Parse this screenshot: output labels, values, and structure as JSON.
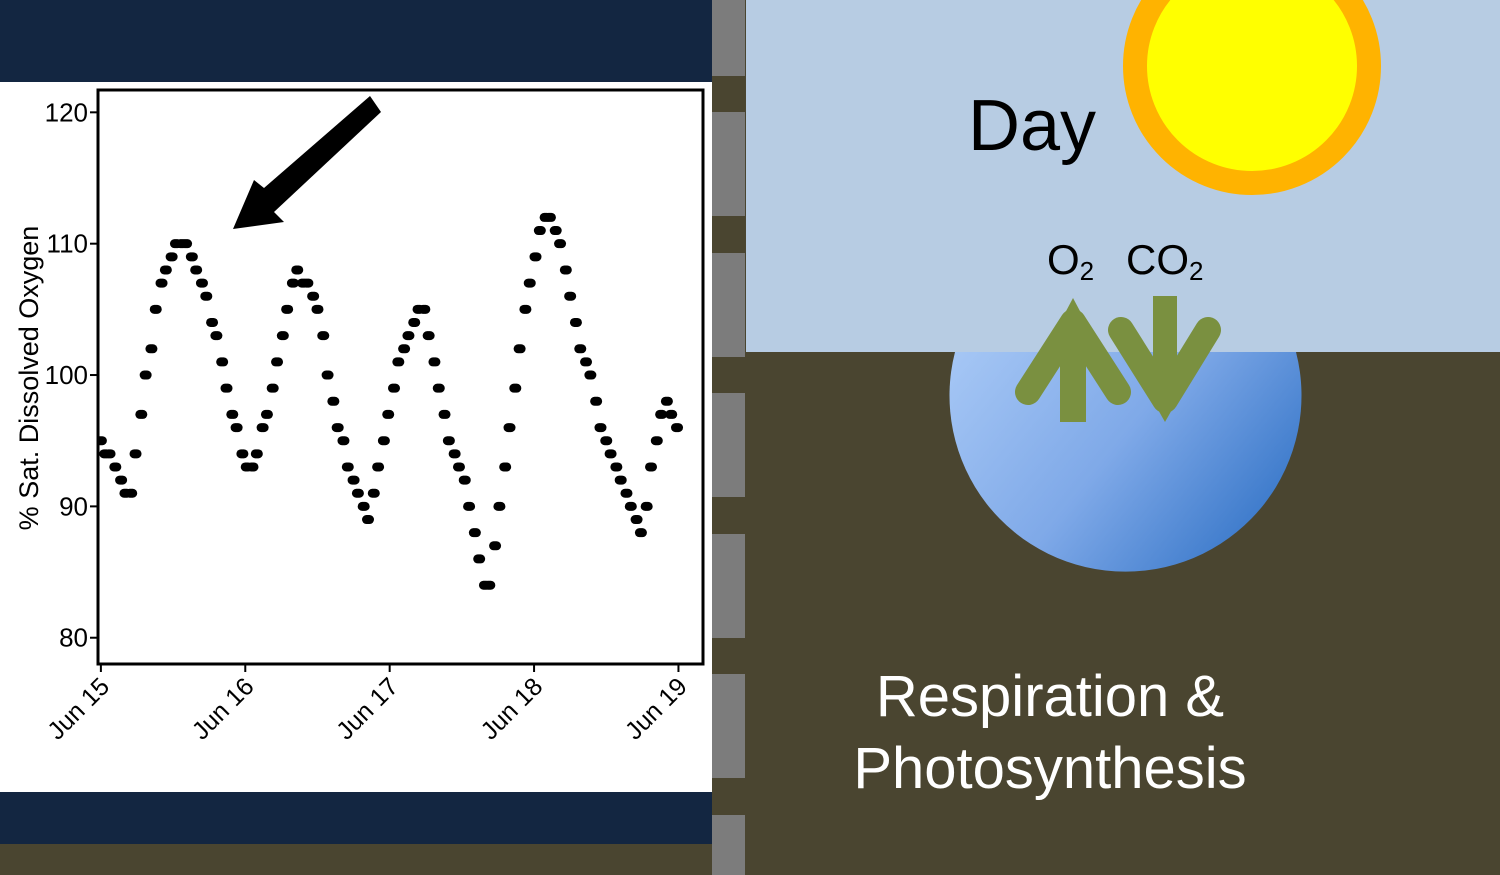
{
  "chart_data": {
    "type": "scatter",
    "title": "",
    "xlabel": "",
    "ylabel": "% Sat. Dissolved Oxygen",
    "xlim": [
      -0.02,
      4.17
    ],
    "ylim": [
      78,
      121.7
    ],
    "x_ticks": [
      "Jun 15",
      "Jun 16",
      "Jun 17",
      "Jun 18",
      "Jun 19"
    ],
    "y_ticks": [
      80,
      90,
      100,
      110,
      120
    ],
    "grid": false,
    "series": [
      {
        "x": [
          0.0,
          0.03,
          0.06,
          0.1,
          0.14,
          0.17,
          0.21,
          0.24,
          0.28,
          0.31,
          0.35,
          0.38,
          0.42,
          0.45,
          0.49,
          0.52,
          0.56,
          0.59,
          0.63,
          0.66,
          0.7,
          0.73,
          0.77,
          0.8,
          0.84,
          0.87,
          0.91,
          0.94,
          0.98,
          1.01,
          1.05,
          1.08,
          1.12,
          1.15,
          1.19,
          1.22,
          1.26,
          1.29,
          1.33,
          1.36,
          1.4,
          1.43,
          1.47,
          1.5,
          1.54,
          1.57,
          1.61,
          1.64,
          1.68,
          1.71,
          1.75,
          1.78,
          1.82,
          1.85,
          1.89,
          1.92,
          1.96,
          1.99,
          2.03,
          2.06,
          2.1,
          2.13,
          2.17,
          2.2,
          2.24,
          2.27,
          2.31,
          2.34,
          2.38,
          2.41,
          2.45,
          2.48,
          2.52,
          2.55,
          2.59,
          2.62,
          2.66,
          2.69,
          2.73,
          2.76,
          2.8,
          2.83,
          2.87,
          2.9,
          2.94,
          2.97,
          3.01,
          3.04,
          3.08,
          3.11,
          3.15,
          3.18,
          3.22,
          3.25,
          3.29,
          3.32,
          3.36,
          3.39,
          3.43,
          3.46,
          3.5,
          3.53,
          3.57,
          3.6,
          3.64,
          3.67,
          3.71,
          3.74,
          3.78,
          3.81,
          3.85,
          3.88,
          3.92,
          3.95,
          3.99
        ],
        "y": [
          95,
          94,
          94,
          93,
          92,
          91,
          91,
          94,
          97,
          100,
          102,
          105,
          107,
          108,
          109,
          110,
          110,
          110,
          109,
          108,
          107,
          106,
          104,
          103,
          101,
          99,
          97,
          96,
          94,
          93,
          93,
          94,
          96,
          97,
          99,
          101,
          103,
          105,
          107,
          108,
          107,
          107,
          106,
          105,
          103,
          100,
          98,
          96,
          95,
          93,
          92,
          91,
          90,
          89,
          91,
          93,
          95,
          97,
          99,
          101,
          102,
          103,
          104,
          105,
          105,
          103,
          101,
          99,
          97,
          95,
          94,
          93,
          92,
          90,
          88,
          86,
          84,
          84,
          87,
          90,
          93,
          96,
          99,
          102,
          105,
          107,
          109,
          111,
          112,
          112,
          111,
          110,
          108,
          106,
          104,
          102,
          101,
          100,
          98,
          96,
          95,
          94,
          93,
          92,
          91,
          90,
          89,
          88,
          90,
          93,
          95,
          97,
          98,
          97,
          96
        ]
      }
    ],
    "annotations": [
      "arrow pointing to peak near Jun 15.6"
    ]
  },
  "diagram": {
    "day_label": "Day",
    "gases": [
      {
        "base": "O",
        "sub": "2"
      },
      {
        "base": "CO",
        "sub": "2"
      }
    ],
    "caption_lines": [
      "Respiration &",
      "Photosynthesis"
    ]
  },
  "colors": {
    "navy": "#132641",
    "sky": "#b7cce3",
    "ground": "#4a4530",
    "sun_inner": "#ffff00",
    "sun_outer": "#ffb300",
    "arrow_green": "#7a9040",
    "water_light": "#a6c7f5",
    "water_dark": "#3f7ccc"
  }
}
